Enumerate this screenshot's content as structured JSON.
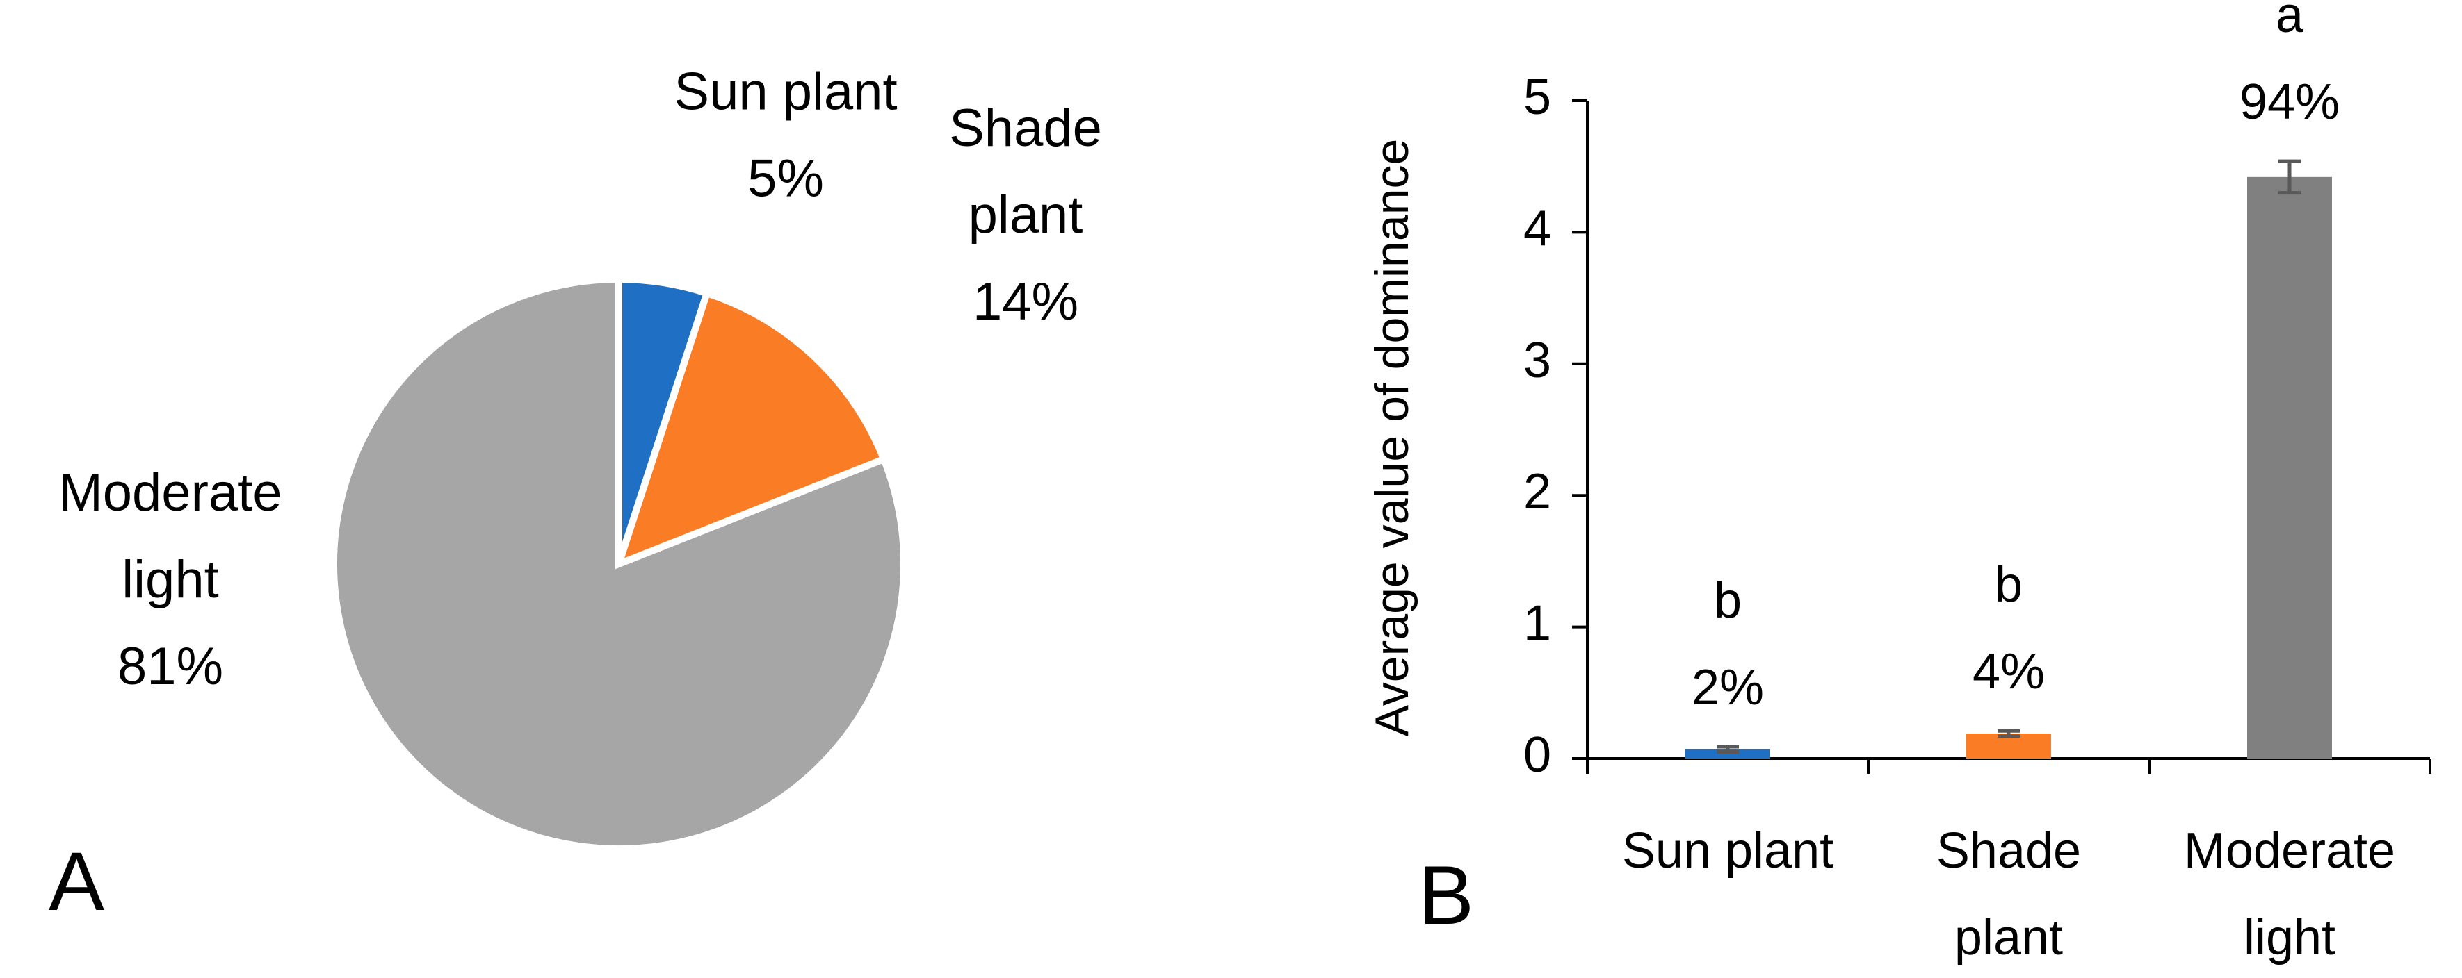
{
  "chart_data": [
    {
      "type": "pie",
      "panel_label": "A",
      "categories": [
        "Sun plant",
        "Shade plant",
        "Moderate light"
      ],
      "display_labels": [
        [
          "Sun plant",
          "5%"
        ],
        [
          "Shade",
          "plant",
          "14%"
        ],
        [
          "Moderate",
          "light",
          "81%"
        ]
      ],
      "values": [
        5,
        14,
        81
      ],
      "colors": [
        "#1f6fc5",
        "#fa7d25",
        "#a6a6a6"
      ],
      "start": "12 o'clock",
      "direction": "clockwise"
    },
    {
      "type": "bar",
      "panel_label": "B",
      "categories": [
        "Sun plant",
        "Shade plant",
        "Moderate light"
      ],
      "category_lines": [
        [
          "Sun plant"
        ],
        [
          "Shade",
          "plant"
        ],
        [
          "Moderate",
          "light"
        ]
      ],
      "values": [
        0.07,
        0.19,
        4.42
      ],
      "errors": [
        0.02,
        0.02,
        0.12
      ],
      "letters": [
        "b",
        "b",
        "a"
      ],
      "percent_labels": [
        "2%",
        "4%",
        "94%"
      ],
      "colors": [
        "#1f6fc5",
        "#fa7d25",
        "#808080"
      ],
      "error_color": "#595959",
      "ylabel": "Average value of dominance",
      "xlabel": "",
      "ylim": [
        0,
        5
      ],
      "yticks": [
        "0",
        "1",
        "2",
        "3",
        "4",
        "5"
      ],
      "grid": false
    }
  ]
}
